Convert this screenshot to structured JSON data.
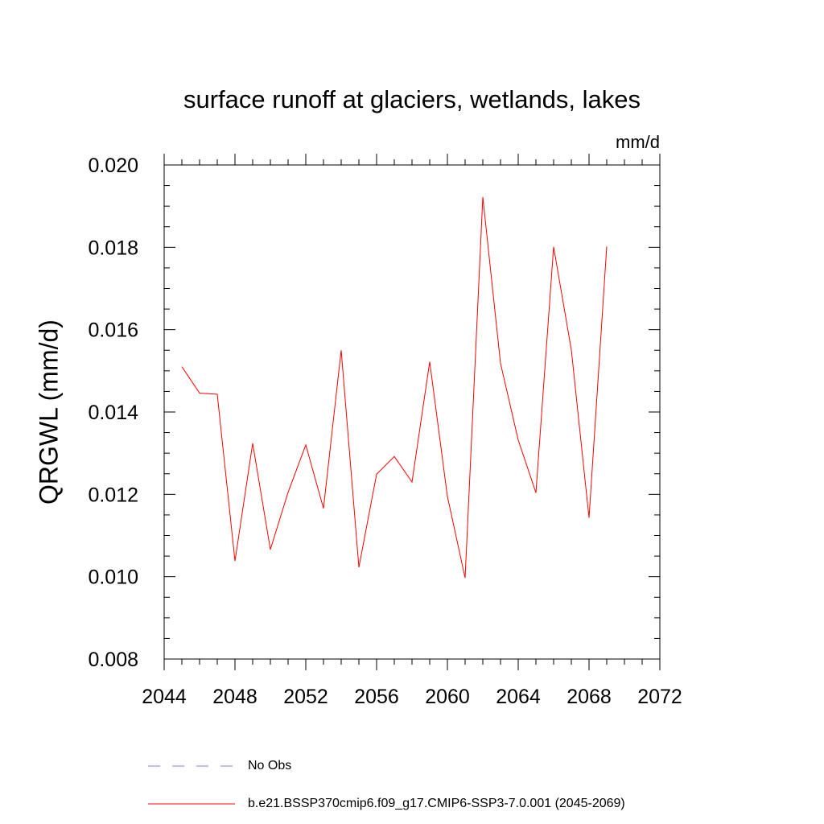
{
  "chart_data": {
    "type": "line",
    "title": "surface runoff at glaciers, wetlands, lakes",
    "units": "mm/d",
    "ylabel": "QRGWL  (mm/d)",
    "xlabel": "",
    "xlim": [
      2044,
      2072
    ],
    "ylim": [
      0.008,
      0.02
    ],
    "x_ticks": [
      2044,
      2048,
      2052,
      2056,
      2060,
      2064,
      2068,
      2072
    ],
    "x_tick_labels": [
      "2044",
      "2048",
      "2052",
      "2056",
      "2060",
      "2064",
      "2068",
      "2072"
    ],
    "y_ticks": [
      0.008,
      0.01,
      0.012,
      0.014,
      0.016,
      0.018,
      0.02
    ],
    "y_tick_labels": [
      "0.008",
      "0.010",
      "0.012",
      "0.014",
      "0.016",
      "0.018",
      "0.020"
    ],
    "grid": false,
    "legend_position": "bottom",
    "series": [
      {
        "name": "b.e21.BSSP370cmip6.f09_g17.CMIP6-SSP3-7.0.001 (2045-2069)",
        "color": "#ff0000",
        "style": "solid",
        "x": [
          2045,
          2046,
          2047,
          2048,
          2049,
          2050,
          2051,
          2052,
          2053,
          2054,
          2055,
          2056,
          2057,
          2058,
          2059,
          2060,
          2061,
          2062,
          2063,
          2064,
          2065,
          2066,
          2067,
          2068,
          2069
        ],
        "values": [
          0.0151,
          0.01446,
          0.01443,
          0.01038,
          0.01324,
          0.01066,
          0.01205,
          0.0132,
          0.01166,
          0.0155,
          0.01023,
          0.01249,
          0.01292,
          0.0123,
          0.01522,
          0.01195,
          0.00997,
          0.01922,
          0.01518,
          0.01332,
          0.01204,
          0.01801,
          0.01551,
          0.01143,
          0.01802
        ]
      }
    ],
    "legend": [
      {
        "label": "No Obs",
        "color": "#7f7fd0",
        "style": "dashed"
      },
      {
        "label": "b.e21.BSSP370cmip6.f09_g17.CMIP6-SSP3-7.0.001 (2045-2069)",
        "color": "#ff0000",
        "style": "solid"
      }
    ]
  }
}
